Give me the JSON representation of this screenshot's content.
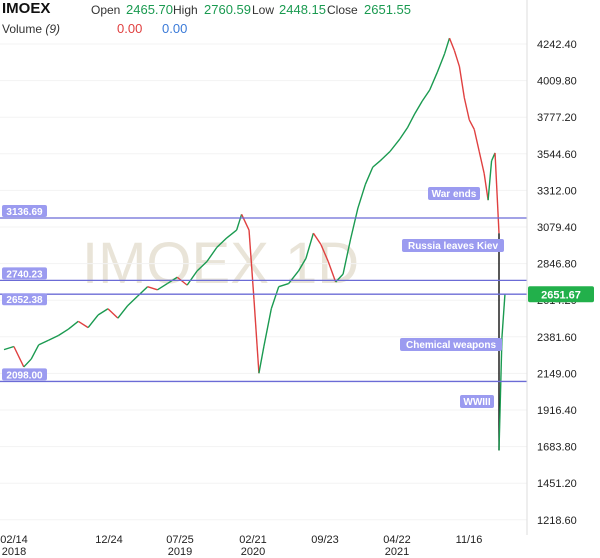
{
  "header": {
    "ticker": "IMOEX",
    "open_label": "Open",
    "open_value": "2465.70",
    "high_label": "High",
    "high_value": "2760.59",
    "low_label": "Low",
    "low_value": "2448.15",
    "close_label": "Close",
    "close_value": "2651.55",
    "volume_label": "Volume",
    "volume_period": "(9)",
    "volume_value_1": "0.00",
    "volume_value_2": "0.00"
  },
  "colors": {
    "up": "#1a9a50",
    "down": "#e04040",
    "level_line": "#6b6bd6",
    "label_bg": "#9b9bf0",
    "price_tag": "#22b04b"
  },
  "chart_data": {
    "type": "line",
    "watermark": "IMOEX 1D",
    "y_ticks": [
      "4242.40",
      "4009.80",
      "3777.20",
      "3544.60",
      "3312.00",
      "3079.40",
      "2846.80",
      "2614.20",
      "2381.60",
      "2149.00",
      "1916.40",
      "1683.80",
      "1451.20",
      "1218.60"
    ],
    "ylim": [
      1100,
      4350
    ],
    "x_ticks": [
      {
        "label": "02/14",
        "year": "2018"
      },
      {
        "label": "12/24",
        "year": ""
      },
      {
        "label": "07/25",
        "year": "2019"
      },
      {
        "label": "02/21",
        "year": "2020"
      },
      {
        "label": "09/23",
        "year": ""
      },
      {
        "label": "04/22",
        "year": "2021"
      },
      {
        "label": "11/16",
        "year": ""
      }
    ],
    "current_price": "2651.67",
    "levels": [
      {
        "value": 3136.69,
        "label": "3136.69"
      },
      {
        "value": 2740.23,
        "label": "2740.23"
      },
      {
        "value": 2652.38,
        "label": "2652.38"
      },
      {
        "value": 2098.0,
        "label": "2098.00"
      }
    ],
    "annotations": [
      "War ends",
      "Russia leaves Kiev",
      "Chemical weapons",
      "WWIII"
    ],
    "series": [
      {
        "points": [
          [
            0,
            2300
          ],
          [
            0.02,
            2320
          ],
          [
            0.04,
            2190
          ],
          [
            0.055,
            2240
          ],
          [
            0.07,
            2330
          ],
          [
            0.09,
            2360
          ],
          [
            0.11,
            2390
          ],
          [
            0.13,
            2430
          ],
          [
            0.15,
            2480
          ],
          [
            0.17,
            2440
          ],
          [
            0.19,
            2520
          ],
          [
            0.21,
            2560
          ],
          [
            0.23,
            2500
          ],
          [
            0.25,
            2580
          ],
          [
            0.27,
            2640
          ],
          [
            0.29,
            2700
          ],
          [
            0.31,
            2680
          ],
          [
            0.33,
            2720
          ],
          [
            0.35,
            2760
          ],
          [
            0.37,
            2710
          ],
          [
            0.39,
            2800
          ],
          [
            0.41,
            2860
          ],
          [
            0.43,
            2950
          ],
          [
            0.45,
            3010
          ],
          [
            0.47,
            3060
          ],
          [
            0.48,
            3160
          ],
          [
            0.495,
            3060
          ],
          [
            0.505,
            2620
          ],
          [
            0.515,
            2150
          ],
          [
            0.525,
            2320
          ],
          [
            0.54,
            2560
          ],
          [
            0.555,
            2700
          ],
          [
            0.575,
            2720
          ],
          [
            0.595,
            2800
          ],
          [
            0.61,
            2880
          ],
          [
            0.625,
            3040
          ],
          [
            0.64,
            2970
          ],
          [
            0.655,
            2860
          ],
          [
            0.67,
            2730
          ],
          [
            0.685,
            2780
          ],
          [
            0.7,
            3000
          ],
          [
            0.715,
            3200
          ],
          [
            0.73,
            3350
          ],
          [
            0.745,
            3460
          ],
          [
            0.76,
            3500
          ],
          [
            0.78,
            3560
          ],
          [
            0.8,
            3640
          ],
          [
            0.815,
            3710
          ],
          [
            0.83,
            3800
          ],
          [
            0.845,
            3880
          ],
          [
            0.86,
            3950
          ],
          [
            0.875,
            4060
          ],
          [
            0.89,
            4180
          ],
          [
            0.9,
            4280
          ],
          [
            0.91,
            4200
          ],
          [
            0.92,
            4100
          ],
          [
            0.93,
            3900
          ],
          [
            0.94,
            3760
          ],
          [
            0.95,
            3700
          ],
          [
            0.96,
            3560
          ],
          [
            0.97,
            3420
          ],
          [
            0.978,
            3250
          ],
          [
            0.985,
            3500
          ],
          [
            0.992,
            3550
          ],
          [
            1.0,
            3040
          ]
        ]
      },
      {
        "points": [
          [
            1.0,
            3040
          ],
          [
            1.0,
            1660
          ]
        ]
      },
      {
        "points": [
          [
            1.0,
            1660
          ],
          [
            1.006,
            2380
          ],
          [
            1.012,
            2651.67
          ]
        ]
      }
    ]
  }
}
